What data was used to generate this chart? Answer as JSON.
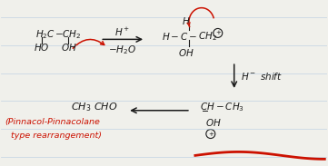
{
  "background_color": "#f0f0eb",
  "line_color": "#1a1a1a",
  "red_color": "#cc1100",
  "figsize": [
    3.61,
    1.83
  ],
  "dpi": 100,
  "notebook_lines": [
    0.1,
    0.27,
    0.44,
    0.61,
    0.78,
    0.95
  ],
  "notebook_line_color": "#b0c8e0",
  "notebook_line_alpha": 0.6
}
